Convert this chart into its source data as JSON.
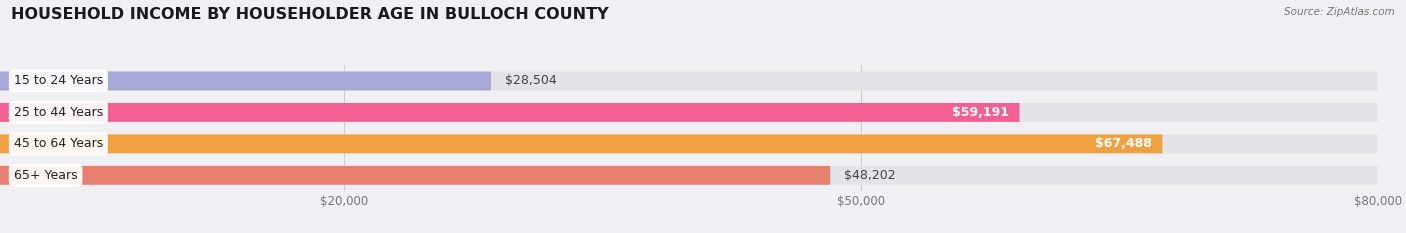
{
  "title": "HOUSEHOLD INCOME BY HOUSEHOLDER AGE IN BULLOCH COUNTY",
  "source": "Source: ZipAtlas.com",
  "categories": [
    "15 to 24 Years",
    "25 to 44 Years",
    "45 to 64 Years",
    "65+ Years"
  ],
  "values": [
    28504,
    59191,
    67488,
    48202
  ],
  "bar_colors": [
    "#a8a8d8",
    "#f06090",
    "#f0a040",
    "#e88070"
  ],
  "value_labels": [
    "$28,504",
    "$59,191",
    "$67,488",
    "$48,202"
  ],
  "label_inside": [
    false,
    true,
    true,
    false
  ],
  "xlim_max": 80000,
  "xticks": [
    20000,
    50000,
    80000
  ],
  "xtick_labels": [
    "$20,000",
    "$50,000",
    "$80,000"
  ],
  "title_fontsize": 11.5,
  "bg_color": "#f0f0f2",
  "bar_bg_color": "#e4e4e8"
}
